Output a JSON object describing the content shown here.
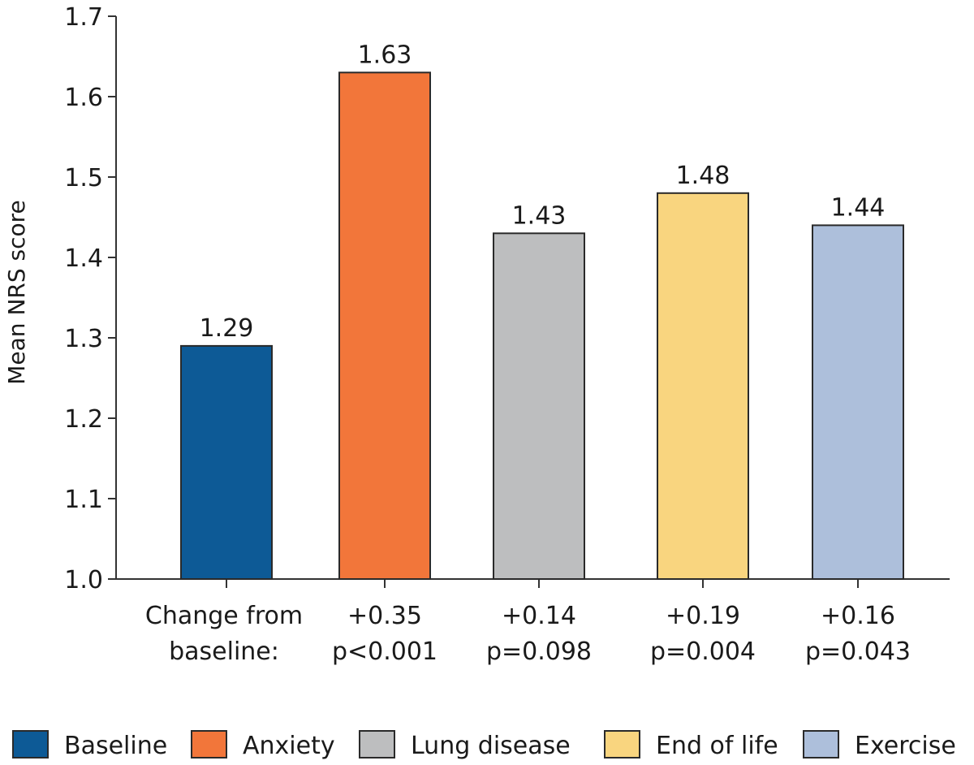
{
  "chart_data": {
    "type": "bar",
    "title": "",
    "xlabel": "",
    "ylabel": "Mean NRS score",
    "ylim": [
      1.0,
      1.7
    ],
    "yticks": [
      "1.0",
      "1.1",
      "1.2",
      "1.3",
      "1.4",
      "1.5",
      "1.6",
      "1.7"
    ],
    "grid": false,
    "categories": [
      "Baseline",
      "Anxiety",
      "Lung disease",
      "End of life",
      "Exercise"
    ],
    "values": [
      1.29,
      1.63,
      1.43,
      1.48,
      1.44
    ],
    "data_labels": [
      "1.29",
      "1.63",
      "1.43",
      "1.48",
      "1.44"
    ],
    "colors": [
      "#0d5a96",
      "#f2763a",
      "#bdbebf",
      "#f9d57f",
      "#adbfdb"
    ],
    "below_axis": {
      "row_label_line1": "Change from",
      "row_label_line2": "baseline:",
      "changes": [
        "",
        "+0.35",
        "+0.14",
        "+0.19",
        "+0.16"
      ],
      "p_values": [
        "",
        "p<0.001",
        "p=0.098",
        "p=0.004",
        "p=0.043"
      ]
    },
    "legend": {
      "position": "bottom",
      "entries": [
        "Baseline",
        "Anxiety",
        "Lung disease",
        "End of life",
        "Exercise"
      ]
    }
  }
}
